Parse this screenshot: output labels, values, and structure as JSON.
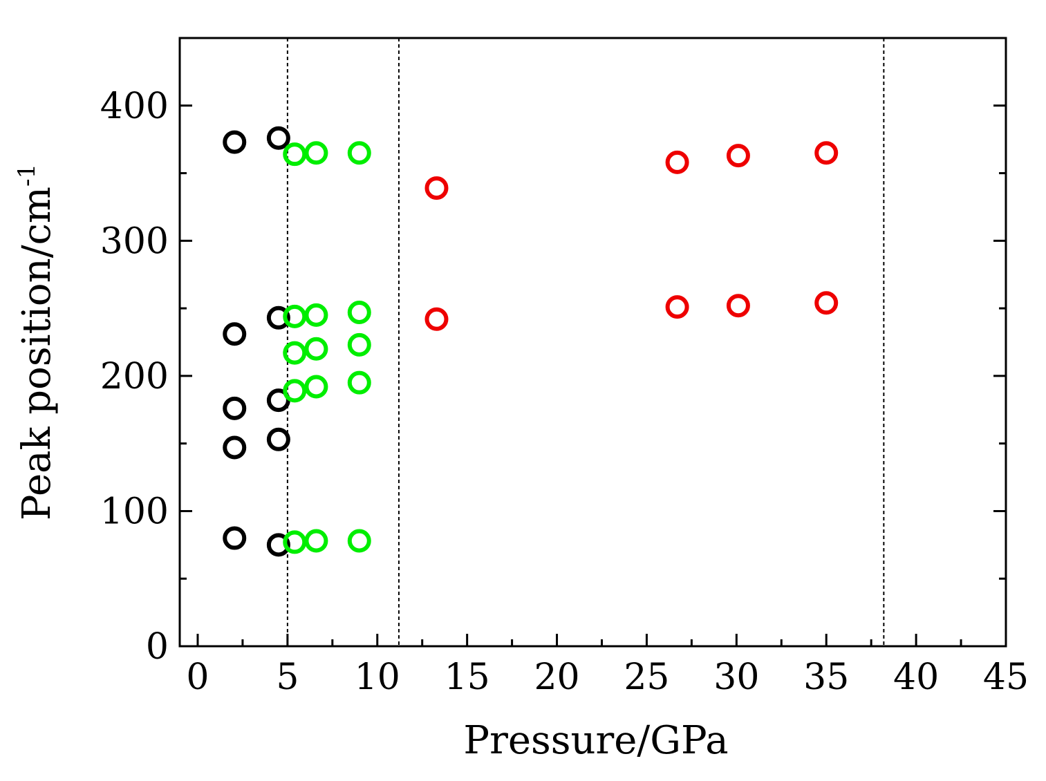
{
  "chart_data": {
    "type": "scatter",
    "title": "",
    "xlabel": "Pressure/GPa",
    "ylabel": "Peak position/cm",
    "ylabel_sup": "-1",
    "xlim": [
      -1,
      45
    ],
    "ylim": [
      0,
      450
    ],
    "xticks": [
      0,
      5,
      10,
      15,
      20,
      25,
      30,
      35,
      40,
      45
    ],
    "yticks": [
      0,
      100,
      200,
      300,
      400
    ],
    "grid": false,
    "marker": "open-circle",
    "vlines": [
      5.0,
      11.2,
      38.2
    ],
    "vline_style": "dotted",
    "series": [
      {
        "color": "#000000",
        "points": [
          [
            2.05,
            373
          ],
          [
            2.05,
            231
          ],
          [
            2.05,
            176
          ],
          [
            2.05,
            147
          ],
          [
            2.05,
            80
          ],
          [
            4.5,
            376
          ],
          [
            4.5,
            243
          ],
          [
            4.5,
            182
          ],
          [
            4.5,
            153
          ],
          [
            4.5,
            75
          ]
        ]
      },
      {
        "color": "#00ee00",
        "points": [
          [
            5.4,
            364
          ],
          [
            5.4,
            244
          ],
          [
            5.4,
            217
          ],
          [
            5.4,
            189
          ],
          [
            5.4,
            77
          ],
          [
            6.6,
            365
          ],
          [
            6.6,
            245
          ],
          [
            6.6,
            220
          ],
          [
            6.6,
            192
          ],
          [
            6.6,
            78
          ],
          [
            9.0,
            365
          ],
          [
            9.0,
            247
          ],
          [
            9.0,
            223
          ],
          [
            9.0,
            195
          ],
          [
            9.0,
            78
          ]
        ]
      },
      {
        "color": "#ee0000",
        "points": [
          [
            13.3,
            339
          ],
          [
            13.3,
            242
          ],
          [
            26.7,
            358
          ],
          [
            26.7,
            251
          ],
          [
            30.1,
            363
          ],
          [
            30.1,
            252
          ],
          [
            35.0,
            365
          ],
          [
            35.0,
            254
          ]
        ]
      }
    ]
  }
}
